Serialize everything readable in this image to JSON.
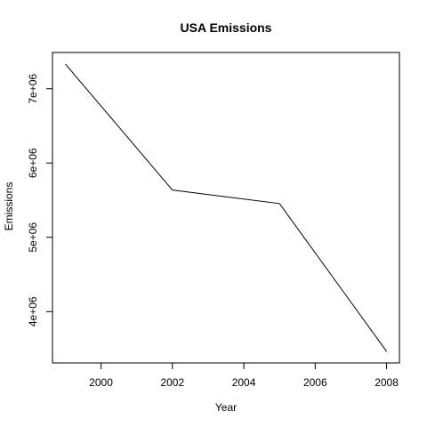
{
  "chart_data": {
    "type": "line",
    "title": "USA Emissions",
    "xlabel": "Year",
    "ylabel": "Emissions",
    "x": [
      1999,
      2002,
      2005,
      2008
    ],
    "series": [
      {
        "values": [
          7332967,
          5635780,
          5454703,
          3464206
        ]
      }
    ],
    "xlim": [
      1998.64,
      2008.36
    ],
    "ylim": [
      3309000,
      7488000
    ],
    "x_ticks": [
      2000,
      2002,
      2004,
      2006,
      2008
    ],
    "x_tick_labels": [
      "2000",
      "2002",
      "2004",
      "2006",
      "2008"
    ],
    "y_ticks": [
      4000000,
      5000000,
      6000000,
      7000000
    ],
    "y_tick_labels": [
      "4e+06",
      "5e+06",
      "6e+06",
      "7e+06"
    ],
    "grid": false,
    "line_color": "#000000"
  }
}
